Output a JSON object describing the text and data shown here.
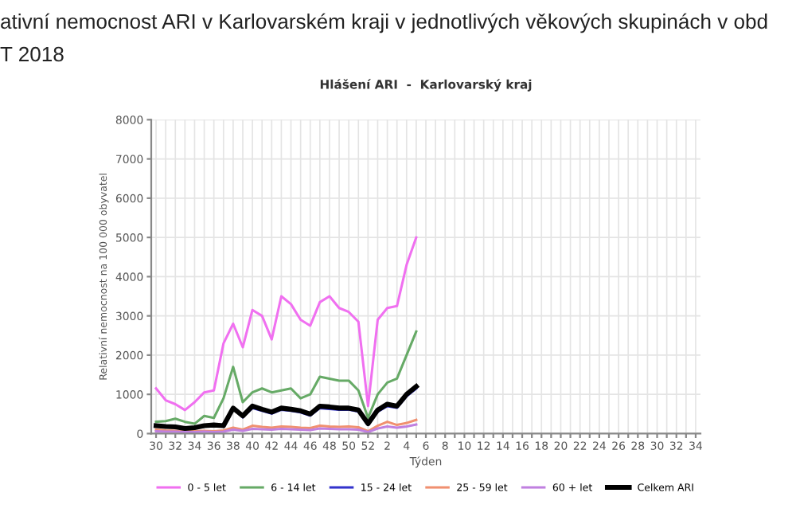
{
  "chart_data": {
    "type": "line",
    "title": "Hlášení ARI  -  Karlovarský kraj",
    "xlabel": "Týden",
    "ylabel": "Relativní nemocnost na 100 000 obyvatel",
    "annotations": [
      "ativní nemocnost ARI v Karlovarském kraji v jednotlivých věkových skupinách v obd",
      "T 2018"
    ],
    "categories": [
      "30",
      null,
      "32",
      null,
      "34",
      null,
      "36",
      null,
      "38",
      null,
      "40",
      null,
      "42",
      null,
      "44",
      null,
      "46",
      null,
      "48",
      null,
      "50",
      null,
      "52",
      null,
      "2",
      null,
      "4",
      null,
      "6",
      null,
      "8",
      null,
      "10",
      null,
      "12",
      null,
      "14",
      null,
      "16",
      null,
      "18",
      null,
      "20",
      null,
      "22",
      null,
      "24",
      null,
      "26",
      null,
      "28",
      null,
      "30",
      null,
      "32",
      null,
      "34"
    ],
    "series": [
      {
        "name": "0 - 5 let",
        "color": "#f070f0",
        "values": [
          1150,
          850,
          750,
          600,
          800,
          1050,
          1100,
          2300,
          2800,
          2200,
          3150,
          3000,
          2400,
          3500,
          3300,
          2900,
          2750,
          3350,
          3500,
          3200,
          3100,
          2850,
          700,
          2900,
          3200,
          3250,
          4300,
          5000,
          null,
          null,
          null,
          null,
          null,
          null,
          null,
          null,
          null,
          null,
          null,
          null,
          null,
          null,
          null,
          null,
          null,
          null,
          null,
          null,
          null,
          null,
          null,
          null,
          null,
          null,
          null,
          null,
          null
        ]
      },
      {
        "name": "6 - 14 let",
        "color": "#66aa66",
        "values": [
          300,
          320,
          380,
          300,
          250,
          450,
          400,
          900,
          1700,
          800,
          1050,
          1150,
          1050,
          1100,
          1150,
          900,
          1000,
          1450,
          1400,
          1350,
          1350,
          1100,
          400,
          1000,
          1300,
          1400,
          2000,
          2600,
          null,
          null,
          null,
          null,
          null,
          null,
          null,
          null,
          null,
          null,
          null,
          null,
          null,
          null,
          null,
          null,
          null,
          null,
          null,
          null,
          null,
          null,
          null,
          null,
          null,
          null,
          null,
          null,
          null
        ]
      },
      {
        "name": "15 - 24 let",
        "color": "#3333cc",
        "values": [
          null,
          null,
          null,
          null,
          null,
          null,
          null,
          null,
          null,
          420,
          650,
          580,
          510,
          610,
          580,
          540,
          460,
          650,
          630,
          610,
          610,
          560,
          220,
          560,
          700,
          660,
          950,
          1150,
          null,
          null,
          null,
          null,
          null,
          null,
          null,
          null,
          null,
          null,
          null,
          null,
          null,
          null,
          null,
          null,
          null,
          null,
          null,
          null,
          null,
          null,
          null,
          null,
          null,
          null,
          null,
          null,
          null
        ]
      },
      {
        "name": "25 - 59 let",
        "color": "#f09070",
        "values": [
          100,
          80,
          70,
          60,
          60,
          70,
          60,
          80,
          150,
          100,
          200,
          170,
          150,
          180,
          170,
          150,
          140,
          200,
          180,
          170,
          180,
          160,
          60,
          200,
          300,
          220,
          270,
          350,
          null,
          null,
          null,
          null,
          null,
          null,
          null,
          null,
          null,
          null,
          null,
          null,
          null,
          null,
          null,
          null,
          null,
          null,
          null,
          null,
          null,
          null,
          null,
          null,
          null,
          null,
          null,
          null,
          null
        ]
      },
      {
        "name": "60 + let",
        "color": "#c080e0",
        "values": [
          60,
          50,
          50,
          40,
          40,
          50,
          40,
          50,
          100,
          70,
          120,
          110,
          100,
          120,
          110,
          100,
          90,
          130,
          120,
          110,
          110,
          100,
          40,
          130,
          180,
          150,
          180,
          230,
          null,
          null,
          null,
          null,
          null,
          null,
          null,
          null,
          null,
          null,
          null,
          null,
          null,
          null,
          null,
          null,
          null,
          null,
          null,
          null,
          null,
          null,
          null,
          null,
          null,
          null,
          null,
          null,
          null
        ]
      },
      {
        "name": "Celkem ARI",
        "color": "#000000",
        "values": [
          200,
          180,
          170,
          130,
          150,
          200,
          220,
          200,
          650,
          450,
          700,
          620,
          550,
          650,
          620,
          580,
          500,
          700,
          680,
          650,
          650,
          600,
          250,
          600,
          750,
          700,
          1000,
          1200,
          null,
          null,
          null,
          null,
          null,
          null,
          null,
          null,
          null,
          null,
          null,
          null,
          null,
          null,
          null,
          null,
          null,
          null,
          null,
          null,
          null,
          null,
          null,
          null,
          null,
          null,
          null,
          null,
          null
        ]
      }
    ],
    "ylim": [
      0,
      8000
    ],
    "yticks": [
      0,
      1000,
      2000,
      3000,
      4000,
      5000,
      6000,
      7000,
      8000
    ],
    "grid": true,
    "legend": "bottom",
    "marker": "none",
    "line_style": "solid"
  }
}
